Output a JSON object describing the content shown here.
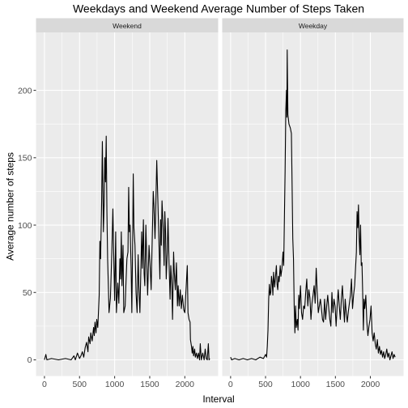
{
  "chart_data": {
    "type": "line",
    "title": "Weekdays and Weekend Average Number of Steps Taken",
    "xlabel": "Interval",
    "ylabel": "Average number of steps",
    "xlim": [
      -120,
      2475
    ],
    "ylim": [
      -12,
      243
    ],
    "x_ticks": [
      0,
      500,
      1000,
      1500,
      2000
    ],
    "x_tick_labels": [
      "0",
      "500",
      "1000",
      "1500",
      "2000"
    ],
    "y_ticks": [
      0,
      50,
      100,
      150,
      200
    ],
    "y_tick_labels": [
      "0",
      "50",
      "100",
      "150",
      "200"
    ],
    "grid": true,
    "legend": "none",
    "colors": {
      "panel_bg": "#ebebeb",
      "strip_bg": "#d9d9d9",
      "grid_major": "#ffffff",
      "line": "#000000",
      "axis_text": "#4d4d4d"
    },
    "panels": [
      {
        "label": "Weekend",
        "points": [
          [
            0,
            0
          ],
          [
            20,
            4
          ],
          [
            35,
            0
          ],
          [
            100,
            1
          ],
          [
            200,
            0
          ],
          [
            300,
            1
          ],
          [
            380,
            0
          ],
          [
            420,
            3
          ],
          [
            440,
            0
          ],
          [
            470,
            5
          ],
          [
            500,
            1
          ],
          [
            520,
            3
          ],
          [
            540,
            6
          ],
          [
            560,
            2
          ],
          [
            580,
            9
          ],
          [
            600,
            13
          ],
          [
            620,
            6
          ],
          [
            630,
            17
          ],
          [
            650,
            12
          ],
          [
            660,
            20
          ],
          [
            680,
            14
          ],
          [
            700,
            24
          ],
          [
            710,
            18
          ],
          [
            720,
            28
          ],
          [
            735,
            20
          ],
          [
            745,
            30
          ],
          [
            760,
            24
          ],
          [
            780,
            48
          ],
          [
            790,
            88
          ],
          [
            800,
            75
          ],
          [
            815,
            118
          ],
          [
            825,
            162
          ],
          [
            830,
            140
          ],
          [
            840,
            95
          ],
          [
            850,
            115
          ],
          [
            860,
            150
          ],
          [
            870,
            132
          ],
          [
            880,
            166
          ],
          [
            890,
            110
          ],
          [
            900,
            75
          ],
          [
            910,
            56
          ],
          [
            920,
            35
          ],
          [
            940,
            46
          ],
          [
            960,
            80
          ],
          [
            975,
            112
          ],
          [
            990,
            70
          ],
          [
            1000,
            44
          ],
          [
            1015,
            95
          ],
          [
            1025,
            35
          ],
          [
            1045,
            57
          ],
          [
            1060,
            42
          ],
          [
            1075,
            75
          ],
          [
            1085,
            60
          ],
          [
            1095,
            95
          ],
          [
            1105,
            55
          ],
          [
            1120,
            85
          ],
          [
            1130,
            35
          ],
          [
            1150,
            40
          ],
          [
            1160,
            55
          ],
          [
            1175,
            75
          ],
          [
            1190,
            80
          ],
          [
            1200,
            128
          ],
          [
            1210,
            95
          ],
          [
            1220,
            100
          ],
          [
            1235,
            68
          ],
          [
            1245,
            35
          ],
          [
            1255,
            80
          ],
          [
            1265,
            138
          ],
          [
            1275,
            98
          ],
          [
            1290,
            85
          ],
          [
            1305,
            50
          ],
          [
            1320,
            35
          ],
          [
            1335,
            78
          ],
          [
            1345,
            55
          ],
          [
            1360,
            35
          ],
          [
            1375,
            70
          ],
          [
            1385,
            95
          ],
          [
            1395,
            68
          ],
          [
            1410,
            104
          ],
          [
            1420,
            64
          ],
          [
            1430,
            55
          ],
          [
            1445,
            100
          ],
          [
            1455,
            78
          ],
          [
            1470,
            48
          ],
          [
            1490,
            85
          ],
          [
            1505,
            70
          ],
          [
            1520,
            52
          ],
          [
            1535,
            88
          ],
          [
            1550,
            125
          ],
          [
            1560,
            115
          ],
          [
            1575,
            90
          ],
          [
            1585,
            110
          ],
          [
            1600,
            148
          ],
          [
            1615,
            120
          ],
          [
            1630,
            90
          ],
          [
            1645,
            60
          ],
          [
            1655,
            104
          ],
          [
            1665,
            85
          ],
          [
            1675,
            118
          ],
          [
            1690,
            100
          ],
          [
            1705,
            70
          ],
          [
            1715,
            110
          ],
          [
            1725,
            95
          ],
          [
            1735,
            60
          ],
          [
            1750,
            80
          ],
          [
            1760,
            105
          ],
          [
            1775,
            72
          ],
          [
            1790,
            45
          ],
          [
            1800,
            70
          ],
          [
            1815,
            55
          ],
          [
            1825,
            30
          ],
          [
            1840,
            80
          ],
          [
            1850,
            65
          ],
          [
            1865,
            52
          ],
          [
            1880,
            72
          ],
          [
            1895,
            40
          ],
          [
            1905,
            55
          ],
          [
            1920,
            40
          ],
          [
            1935,
            52
          ],
          [
            1950,
            38
          ],
          [
            1965,
            48
          ],
          [
            1985,
            37
          ],
          [
            2000,
            35
          ],
          [
            2020,
            55
          ],
          [
            2035,
            70
          ],
          [
            2045,
            35
          ],
          [
            2060,
            30
          ],
          [
            2075,
            28
          ],
          [
            2080,
            15
          ],
          [
            2095,
            10
          ],
          [
            2105,
            5
          ],
          [
            2115,
            10
          ],
          [
            2125,
            3
          ],
          [
            2140,
            8
          ],
          [
            2150,
            2
          ],
          [
            2165,
            5
          ],
          [
            2180,
            1
          ],
          [
            2195,
            5
          ],
          [
            2210,
            0
          ],
          [
            2220,
            12
          ],
          [
            2235,
            0
          ],
          [
            2255,
            5
          ],
          [
            2275,
            0
          ],
          [
            2290,
            8
          ],
          [
            2305,
            1
          ],
          [
            2320,
            0
          ],
          [
            2335,
            12
          ],
          [
            2345,
            0
          ],
          [
            2355,
            1
          ]
        ]
      },
      {
        "label": "Weekday",
        "points": [
          [
            0,
            2
          ],
          [
            15,
            0
          ],
          [
            60,
            1
          ],
          [
            120,
            0
          ],
          [
            180,
            1
          ],
          [
            240,
            0
          ],
          [
            300,
            1
          ],
          [
            360,
            0
          ],
          [
            420,
            2
          ],
          [
            470,
            1
          ],
          [
            500,
            4
          ],
          [
            515,
            2
          ],
          [
            525,
            10
          ],
          [
            535,
            22
          ],
          [
            545,
            45
          ],
          [
            555,
            56
          ],
          [
            565,
            48
          ],
          [
            575,
            50
          ],
          [
            585,
            62
          ],
          [
            595,
            58
          ],
          [
            605,
            48
          ],
          [
            615,
            65
          ],
          [
            630,
            54
          ],
          [
            640,
            60
          ],
          [
            655,
            70
          ],
          [
            665,
            56
          ],
          [
            675,
            52
          ],
          [
            685,
            62
          ],
          [
            695,
            58
          ],
          [
            710,
            70
          ],
          [
            720,
            62
          ],
          [
            735,
            68
          ],
          [
            750,
            80
          ],
          [
            760,
            70
          ],
          [
            770,
            105
          ],
          [
            780,
            140
          ],
          [
            790,
            185
          ],
          [
            800,
            200
          ],
          [
            805,
            180
          ],
          [
            810,
            230
          ],
          [
            815,
            205
          ],
          [
            820,
            182
          ],
          [
            835,
            175
          ],
          [
            855,
            172
          ],
          [
            870,
            168
          ],
          [
            880,
            130
          ],
          [
            890,
            90
          ],
          [
            900,
            75
          ],
          [
            910,
            40
          ],
          [
            920,
            20
          ],
          [
            930,
            40
          ],
          [
            940,
            24
          ],
          [
            955,
            30
          ],
          [
            965,
            22
          ],
          [
            975,
            48
          ],
          [
            985,
            38
          ],
          [
            1000,
            55
          ],
          [
            1015,
            35
          ],
          [
            1030,
            30
          ],
          [
            1045,
            40
          ],
          [
            1060,
            38
          ],
          [
            1075,
            50
          ],
          [
            1090,
            60
          ],
          [
            1105,
            40
          ],
          [
            1120,
            52
          ],
          [
            1135,
            46
          ],
          [
            1150,
            30
          ],
          [
            1165,
            42
          ],
          [
            1180,
            48
          ],
          [
            1195,
            55
          ],
          [
            1210,
            42
          ],
          [
            1225,
            68
          ],
          [
            1240,
            50
          ],
          [
            1255,
            35
          ],
          [
            1270,
            40
          ],
          [
            1285,
            45
          ],
          [
            1300,
            38
          ],
          [
            1315,
            30
          ],
          [
            1330,
            28
          ],
          [
            1345,
            45
          ],
          [
            1360,
            30
          ],
          [
            1375,
            40
          ],
          [
            1390,
            48
          ],
          [
            1405,
            38
          ],
          [
            1420,
            30
          ],
          [
            1435,
            25
          ],
          [
            1450,
            50
          ],
          [
            1465,
            35
          ],
          [
            1480,
            45
          ],
          [
            1495,
            40
          ],
          [
            1510,
            25
          ],
          [
            1525,
            40
          ],
          [
            1540,
            52
          ],
          [
            1555,
            40
          ],
          [
            1570,
            30
          ],
          [
            1585,
            45
          ],
          [
            1600,
            55
          ],
          [
            1615,
            40
          ],
          [
            1630,
            28
          ],
          [
            1640,
            45
          ],
          [
            1655,
            35
          ],
          [
            1670,
            28
          ],
          [
            1685,
            36
          ],
          [
            1700,
            42
          ],
          [
            1715,
            48
          ],
          [
            1730,
            60
          ],
          [
            1745,
            38
          ],
          [
            1760,
            48
          ],
          [
            1775,
            55
          ],
          [
            1790,
            70
          ],
          [
            1800,
            80
          ],
          [
            1810,
            110
          ],
          [
            1820,
            98
          ],
          [
            1830,
            115
          ],
          [
            1840,
            90
          ],
          [
            1850,
            78
          ],
          [
            1860,
            100
          ],
          [
            1870,
            70
          ],
          [
            1880,
            72
          ],
          [
            1890,
            50
          ],
          [
            1900,
            22
          ],
          [
            1910,
            45
          ],
          [
            1920,
            38
          ],
          [
            1935,
            48
          ],
          [
            1950,
            28
          ],
          [
            1965,
            18
          ],
          [
            1980,
            25
          ],
          [
            1995,
            30
          ],
          [
            2010,
            40
          ],
          [
            2025,
            20
          ],
          [
            2040,
            14
          ],
          [
            2055,
            20
          ],
          [
            2070,
            12
          ],
          [
            2085,
            8
          ],
          [
            2100,
            15
          ],
          [
            2115,
            5
          ],
          [
            2130,
            10
          ],
          [
            2145,
            4
          ],
          [
            2160,
            7
          ],
          [
            2175,
            2
          ],
          [
            2190,
            6
          ],
          [
            2205,
            1
          ],
          [
            2220,
            4
          ],
          [
            2235,
            8
          ],
          [
            2250,
            2
          ],
          [
            2265,
            5
          ],
          [
            2280,
            0
          ],
          [
            2295,
            3
          ],
          [
            2310,
            6
          ],
          [
            2325,
            1
          ],
          [
            2340,
            4
          ],
          [
            2355,
            2
          ]
        ]
      }
    ]
  }
}
